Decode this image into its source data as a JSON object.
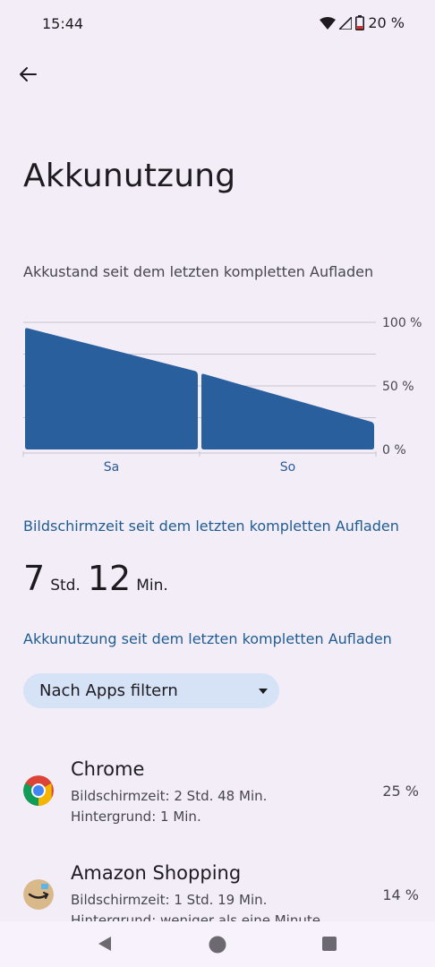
{
  "status_bar": {
    "time": "15:44",
    "battery_text": "20 %"
  },
  "header": {
    "title": "Akkunutzung"
  },
  "chart_section": {
    "subtitle": "Akkustand seit dem letzten kompletten Aufladen"
  },
  "chart_data": {
    "type": "area",
    "title": "",
    "y_tick_labels": [
      "100 %",
      "50 %",
      "0 %"
    ],
    "ylim": [
      0,
      100
    ],
    "categories": [
      "Sa",
      "So"
    ],
    "series": [
      {
        "values": [
          [
            0,
            96
          ],
          [
            1,
            61
          ]
        ]
      },
      {
        "values": [
          [
            1,
            60
          ],
          [
            2,
            21
          ]
        ]
      }
    ],
    "grid": true
  },
  "screen_time": {
    "heading": "Bildschirmzeit seit dem letzten kompletten Aufladen",
    "hours": "7",
    "hours_unit": "Std.",
    "minutes": "12",
    "minutes_unit": "Min."
  },
  "usage": {
    "heading": "Akkunutzung seit dem letzten kompletten Aufladen",
    "filter_label": "Nach Apps filtern",
    "apps": [
      {
        "name": "Chrome",
        "screen": "Bildschirmzeit: 2 Std. 48 Min.",
        "background": "Hintergrund: 1 Min.",
        "percent": "25 %",
        "icon": "chrome-icon"
      },
      {
        "name": "Amazon Shopping",
        "screen": "Bildschirmzeit: 1 Std. 19 Min.",
        "background": "Hintergrund: weniger als eine Minute",
        "percent": "14 %",
        "icon": "amazon-icon"
      }
    ]
  },
  "colors": {
    "background": "#f3edf8",
    "accent": "#1f5d91",
    "chart_fill": "#2a5f9e",
    "chip": "#d6e3f7"
  }
}
